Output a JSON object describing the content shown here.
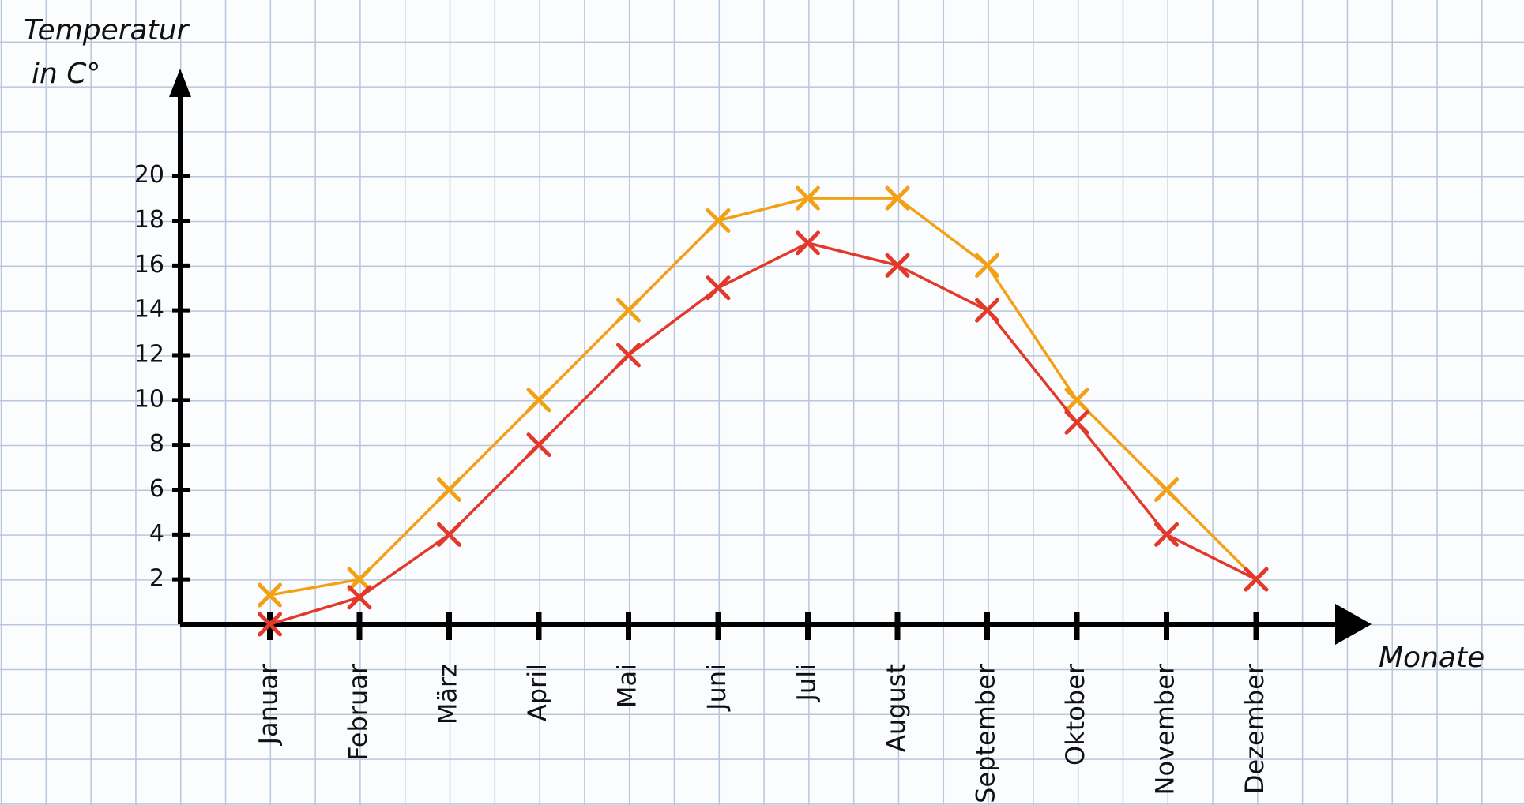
{
  "chart_data": {
    "type": "line",
    "ylabel": [
      "Temperatur",
      "in C°"
    ],
    "xlabel": "Monate",
    "categories": [
      "Januar",
      "Februar",
      "März",
      "April",
      "Mai",
      "Juni",
      "Juli",
      "August",
      "September",
      "Oktober",
      "November",
      "Dezember"
    ],
    "series": [
      {
        "color": "#f3a114",
        "values": [
          1.3,
          2,
          6,
          10,
          14,
          18,
          19,
          19,
          16,
          10,
          6,
          2
        ]
      },
      {
        "color": "#e2392b",
        "values": [
          0,
          1.2,
          4,
          8,
          12,
          15,
          17,
          16,
          14,
          9,
          4,
          2
        ]
      }
    ],
    "ylim": [
      0,
      24
    ],
    "yticks": [
      2,
      4,
      6,
      8,
      10,
      12,
      14,
      16,
      18,
      20
    ]
  }
}
